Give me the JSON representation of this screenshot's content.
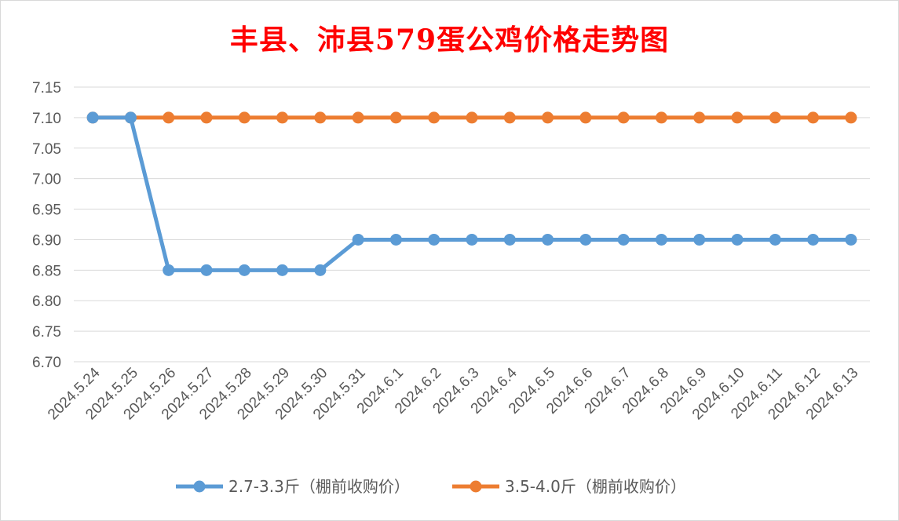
{
  "chart_data": {
    "type": "line",
    "title": "丰县、沛县579蛋公鸡价格走势图",
    "xlabel": "",
    "ylabel": "",
    "categories": [
      "2024.5.24",
      "2024.5.25",
      "2024.5.26",
      "2024.5.27",
      "2024.5.28",
      "2024.5.29",
      "2024.5.30",
      "2024.5.31",
      "2024.6.1",
      "2024.6.2",
      "2024.6.3",
      "2024.6.4",
      "2024.6.5",
      "2024.6.6",
      "2024.6.7",
      "2024.6.8",
      "2024.6.9",
      "2024.6.10",
      "2024.6.11",
      "2024.6.12",
      "2024.6.13"
    ],
    "ylim": [
      6.7,
      7.15
    ],
    "yticks": [
      "6.70",
      "6.75",
      "6.80",
      "6.85",
      "6.90",
      "6.95",
      "7.00",
      "7.05",
      "7.10",
      "7.15"
    ],
    "grid": true,
    "legend_position": "bottom",
    "series": [
      {
        "name": "2.7-3.3斤（棚前收购价）",
        "color": "#5b9bd5",
        "values": [
          7.1,
          7.1,
          6.85,
          6.85,
          6.85,
          6.85,
          6.85,
          6.9,
          6.9,
          6.9,
          6.9,
          6.9,
          6.9,
          6.9,
          6.9,
          6.9,
          6.9,
          6.9,
          6.9,
          6.9,
          6.9
        ]
      },
      {
        "name": "3.5-4.0斤（棚前收购价）",
        "color": "#ed7d31",
        "values": [
          7.1,
          7.1,
          7.1,
          7.1,
          7.1,
          7.1,
          7.1,
          7.1,
          7.1,
          7.1,
          7.1,
          7.1,
          7.1,
          7.1,
          7.1,
          7.1,
          7.1,
          7.1,
          7.1,
          7.1,
          7.1
        ]
      }
    ]
  }
}
